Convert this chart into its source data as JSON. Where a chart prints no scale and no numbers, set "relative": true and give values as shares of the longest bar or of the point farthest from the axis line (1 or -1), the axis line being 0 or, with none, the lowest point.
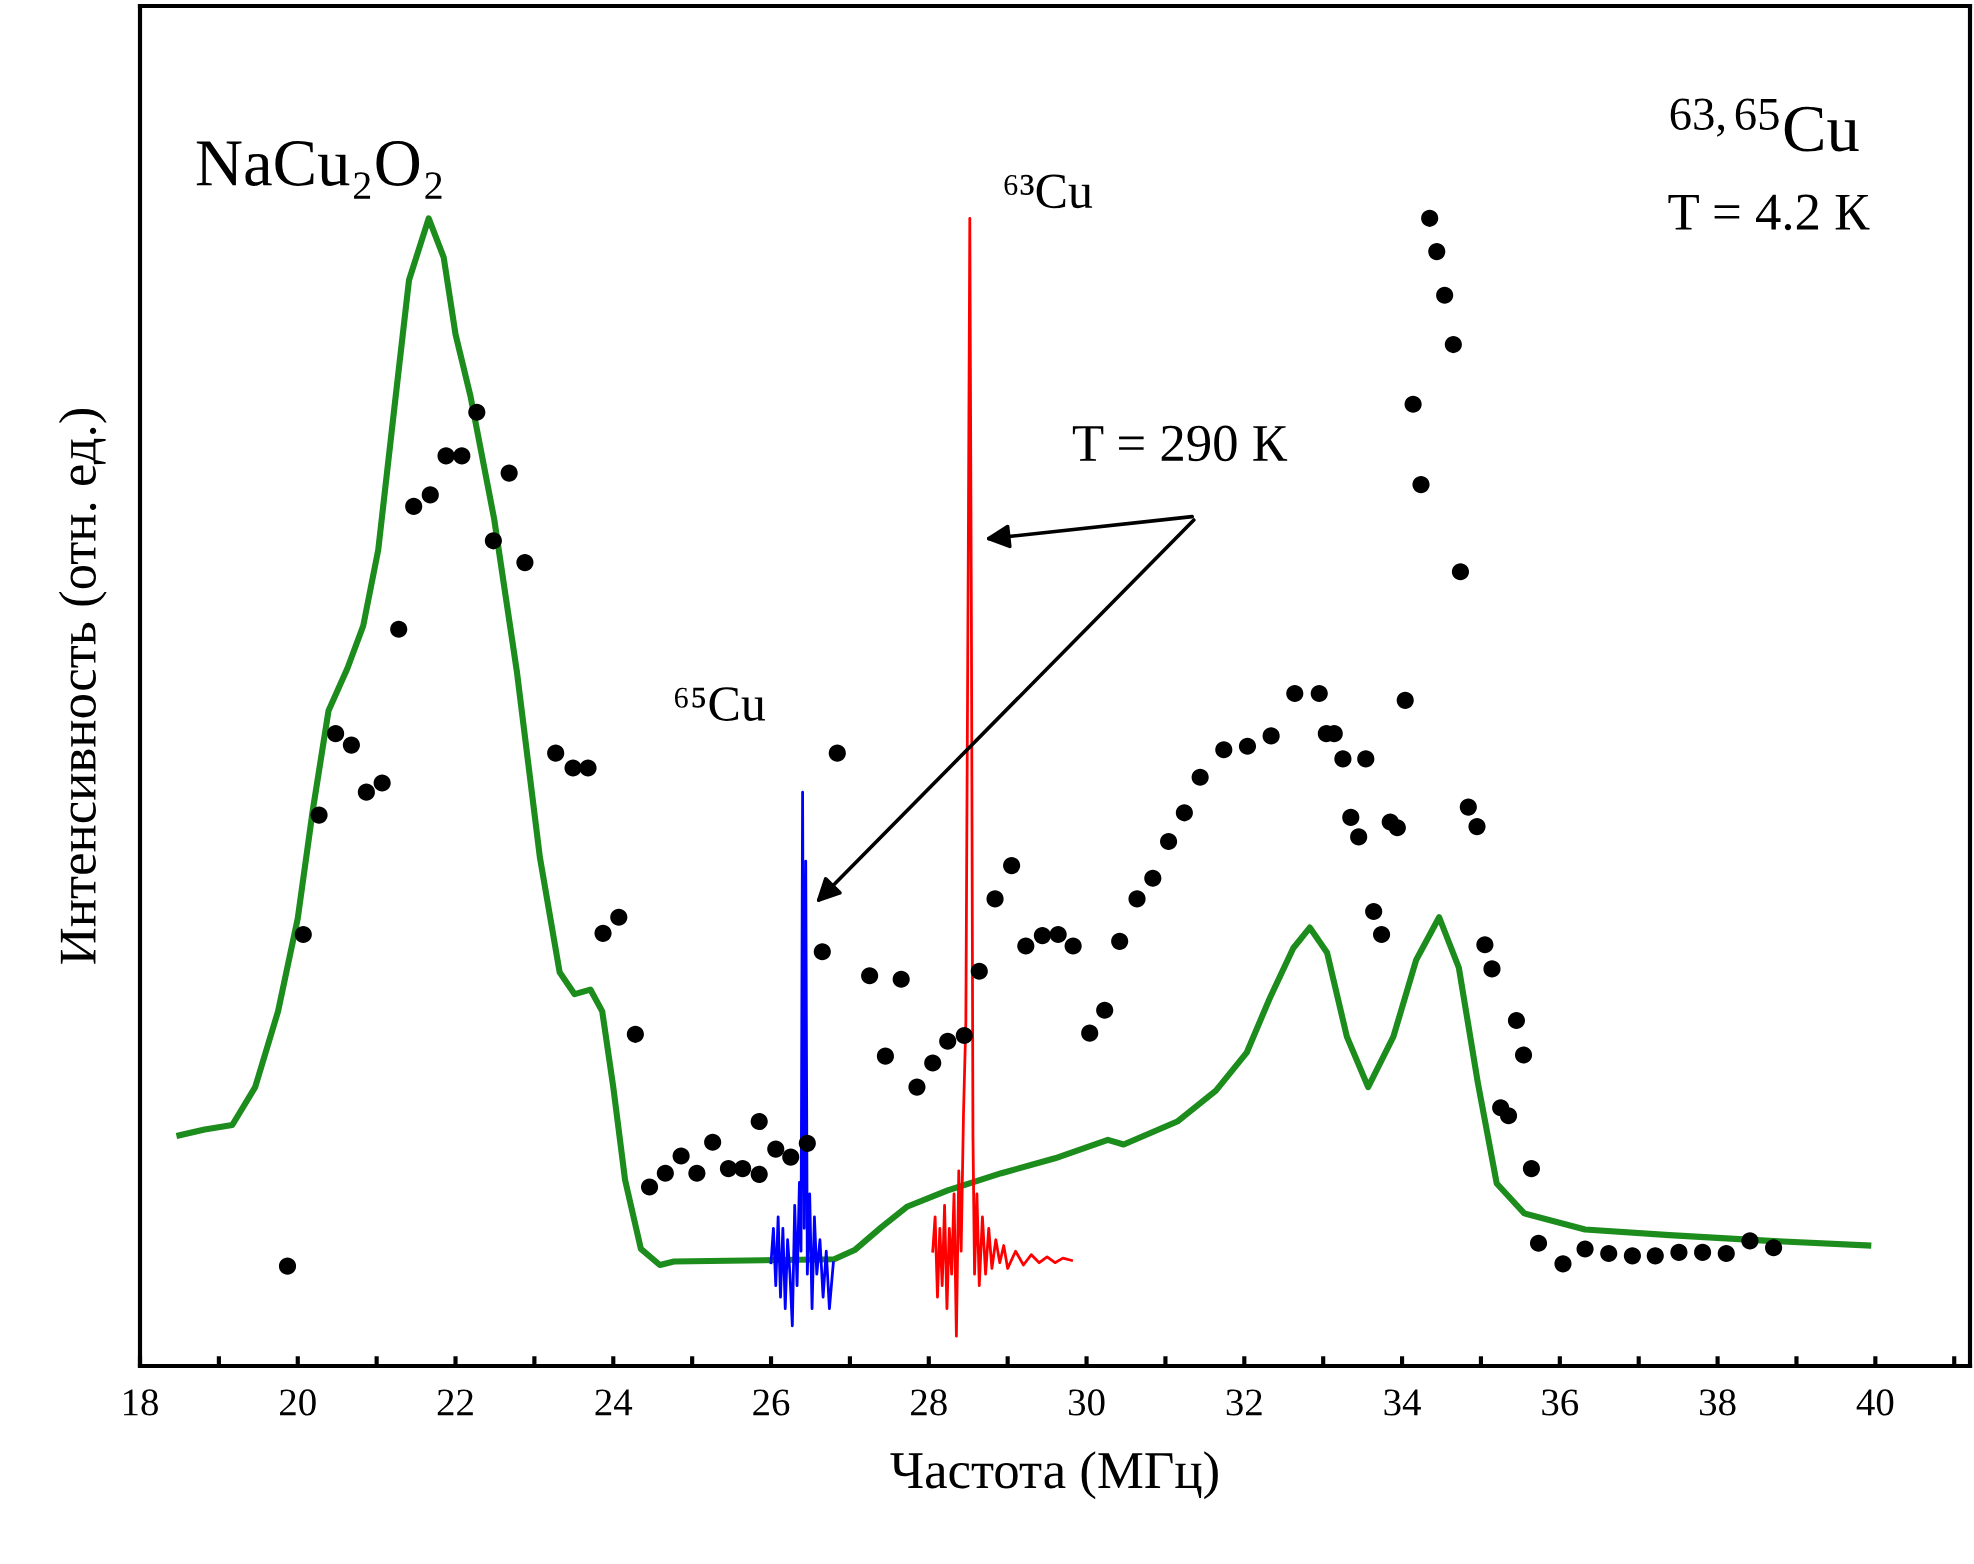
{
  "chart_data": {
    "type": "line",
    "relative": true,
    "xlabel": "Частота (МГц)",
    "ylabel": "Интенсивность (отн. ед.)",
    "xlim": [
      18,
      41.2
    ],
    "xticks": [
      18,
      {
        "value": 19,
        "label": null
      },
      20,
      {
        "value": 21,
        "label": null
      },
      22,
      {
        "value": 23,
        "label": null
      },
      24,
      {
        "value": 25,
        "label": null
      },
      26,
      {
        "value": 27,
        "label": null
      },
      28,
      {
        "value": 29,
        "label": null
      },
      30,
      {
        "value": 31,
        "label": null
      },
      32,
      {
        "value": 33,
        "label": null
      },
      34,
      {
        "value": 35,
        "label": null
      },
      36,
      {
        "value": 37,
        "label": null
      },
      38,
      {
        "value": 39,
        "label": null
      },
      40,
      {
        "value": 41,
        "label": null
      }
    ],
    "tick_labels": "x",
    "grid": false,
    "annotations": [
      "NaCu₂O₂",
      "$^{63,65}$Cu",
      "T = 4.2 К",
      {
        "text": "⁶⁵Cu",
        "x": 26.4,
        "y": 0.5
      },
      {
        "text": "⁶³Cu",
        "x": 28.52,
        "y": 1.0
      },
      "T = 290 К"
    ],
    "series": [
      {
        "type": "scatter",
        "color": "#000000",
        "marker": "circle",
        "x": [
          19.87,
          20.07,
          20.27,
          20.48,
          20.68,
          20.87,
          21.07,
          21.28,
          21.47,
          21.68,
          21.88,
          22.08,
          22.27,
          22.48,
          22.68,
          22.88,
          23.27,
          23.49,
          23.68,
          23.87,
          24.07,
          24.28,
          24.46,
          24.66,
          24.86,
          25.06,
          25.26,
          25.46,
          25.64,
          25.85,
          25.85,
          26.06,
          26.25,
          26.46,
          26.65,
          26.84,
          27.25,
          27.45,
          27.65,
          27.85,
          28.05,
          28.24,
          28.45,
          28.64,
          28.84,
          29.05,
          29.23,
          29.44,
          29.64,
          29.83,
          30.04,
          30.23,
          30.42,
          30.64,
          30.84,
          31.04,
          31.24,
          31.44,
          31.74,
          32.04,
          32.34,
          32.64,
          32.95,
          33.04,
          33.14,
          33.25,
          33.35,
          33.45,
          33.54,
          33.64,
          33.74,
          33.85,
          33.94,
          34.04,
          34.14,
          34.24,
          34.35,
          34.44,
          34.54,
          34.65,
          34.74,
          34.84,
          34.95,
          35.05,
          35.14,
          35.25,
          35.35,
          35.45,
          35.54,
          35.64,
          35.73,
          36.04,
          36.32,
          36.62,
          36.92,
          37.21,
          37.51,
          37.81,
          38.11,
          38.41,
          38.71
        ],
        "values": [
          0.087,
          0.376,
          0.48,
          0.551,
          0.541,
          0.5,
          0.508,
          0.642,
          0.749,
          0.759,
          0.793,
          0.793,
          0.831,
          0.719,
          0.778,
          0.7,
          0.534,
          0.521,
          0.521,
          0.377,
          0.391,
          0.289,
          0.156,
          0.168,
          0.183,
          0.168,
          0.195,
          0.172,
          0.172,
          0.213,
          0.167,
          0.189,
          0.182,
          0.194,
          0.361,
          0.534,
          0.34,
          0.27,
          0.337,
          0.243,
          0.264,
          0.283,
          0.288,
          0.344,
          0.407,
          0.436,
          0.366,
          0.375,
          0.376,
          0.366,
          0.29,
          0.31,
          0.37,
          0.407,
          0.425,
          0.457,
          0.482,
          0.513,
          0.537,
          0.54,
          0.549,
          0.586,
          0.586,
          0.551,
          0.551,
          0.529,
          0.478,
          0.461,
          0.529,
          0.396,
          0.376,
          0.474,
          0.469,
          0.58,
          0.838,
          0.768,
          1.0,
          0.971,
          0.933,
          0.89,
          0.692,
          0.487,
          0.47,
          0.367,
          0.346,
          0.225,
          0.218,
          0.301,
          0.271,
          0.172,
          0.107,
          0.089,
          0.102,
          0.098,
          0.096,
          0.096,
          0.099,
          0.099,
          0.098,
          0.109,
          0.103
        ]
      },
      {
        "color": "#1c8c1c",
        "x": [
          18.5,
          18.82,
          19.17,
          19.46,
          19.75,
          20.0,
          20.19,
          20.39,
          20.63,
          20.83,
          21.02,
          21.22,
          21.41,
          21.66,
          21.85,
          22.0,
          22.19,
          22.49,
          22.78,
          23.07,
          23.32,
          23.51,
          23.71,
          23.86,
          24.0,
          24.15,
          24.35,
          24.59,
          24.77,
          26.8,
          27.06,
          27.4,
          27.73,
          28.24,
          28.92,
          29.6,
          30.27,
          30.47,
          31.15,
          31.64,
          32.03,
          32.32,
          32.62,
          32.83,
          33.05,
          33.3,
          33.57,
          33.89,
          34.18,
          34.47,
          34.72,
          34.96,
          35.2,
          35.55,
          36.32,
          37.39,
          38.66,
          39.91
        ],
        "values": [
          0.201,
          0.206,
          0.21,
          0.243,
          0.309,
          0.39,
          0.484,
          0.571,
          0.608,
          0.645,
          0.711,
          0.832,
          0.946,
          1.0,
          0.966,
          0.899,
          0.845,
          0.738,
          0.604,
          0.443,
          0.343,
          0.324,
          0.328,
          0.309,
          0.243,
          0.162,
          0.102,
          0.088,
          0.091,
          0.093,
          0.101,
          0.121,
          0.139,
          0.153,
          0.168,
          0.181,
          0.197,
          0.193,
          0.213,
          0.24,
          0.273,
          0.32,
          0.364,
          0.382,
          0.36,
          0.287,
          0.243,
          0.287,
          0.354,
          0.391,
          0.347,
          0.247,
          0.159,
          0.133,
          0.119,
          0.114,
          0.109,
          0.105
        ]
      },
      {
        "color": "#0000ff",
        "x": [
          26.0,
          26.03,
          26.06,
          26.09,
          26.12,
          26.15,
          26.18,
          26.21,
          26.24,
          26.27,
          26.3,
          26.33,
          26.36,
          26.38,
          26.4,
          26.42,
          26.44,
          26.46,
          26.49,
          26.52,
          26.55,
          26.58,
          26.62,
          26.66,
          26.7,
          26.74,
          26.79
        ],
        "values": [
          0.09,
          0.12,
          0.07,
          0.13,
          0.06,
          0.12,
          0.05,
          0.11,
          0.08,
          0.035,
          0.14,
          0.07,
          0.16,
          0.1,
          0.5,
          0.12,
          0.44,
          0.08,
          0.15,
          0.05,
          0.13,
          0.08,
          0.11,
          0.06,
          0.1,
          0.05,
          0.09
        ]
      },
      {
        "color": "#ff0000",
        "x": [
          28.05,
          28.08,
          28.11,
          28.14,
          28.17,
          28.2,
          28.23,
          28.26,
          28.29,
          28.32,
          28.35,
          28.38,
          28.41,
          28.44,
          28.47,
          28.5,
          28.52,
          28.54,
          28.56,
          28.58,
          28.61,
          28.64,
          28.68,
          28.72,
          28.76,
          28.8,
          28.85,
          28.9,
          28.95,
          29.0,
          29.1,
          29.2,
          29.3,
          29.4,
          29.5,
          29.6,
          29.7,
          29.81
        ],
        "values": [
          0.1,
          0.13,
          0.06,
          0.12,
          0.07,
          0.14,
          0.05,
          0.12,
          0.08,
          0.15,
          0.026,
          0.17,
          0.1,
          0.22,
          0.3,
          0.7,
          1.0,
          0.65,
          0.2,
          0.08,
          0.15,
          0.07,
          0.13,
          0.08,
          0.12,
          0.085,
          0.11,
          0.09,
          0.105,
          0.085,
          0.1,
          0.088,
          0.097,
          0.09,
          0.095,
          0.09,
          0.094,
          0.092
        ]
      }
    ]
  }
}
